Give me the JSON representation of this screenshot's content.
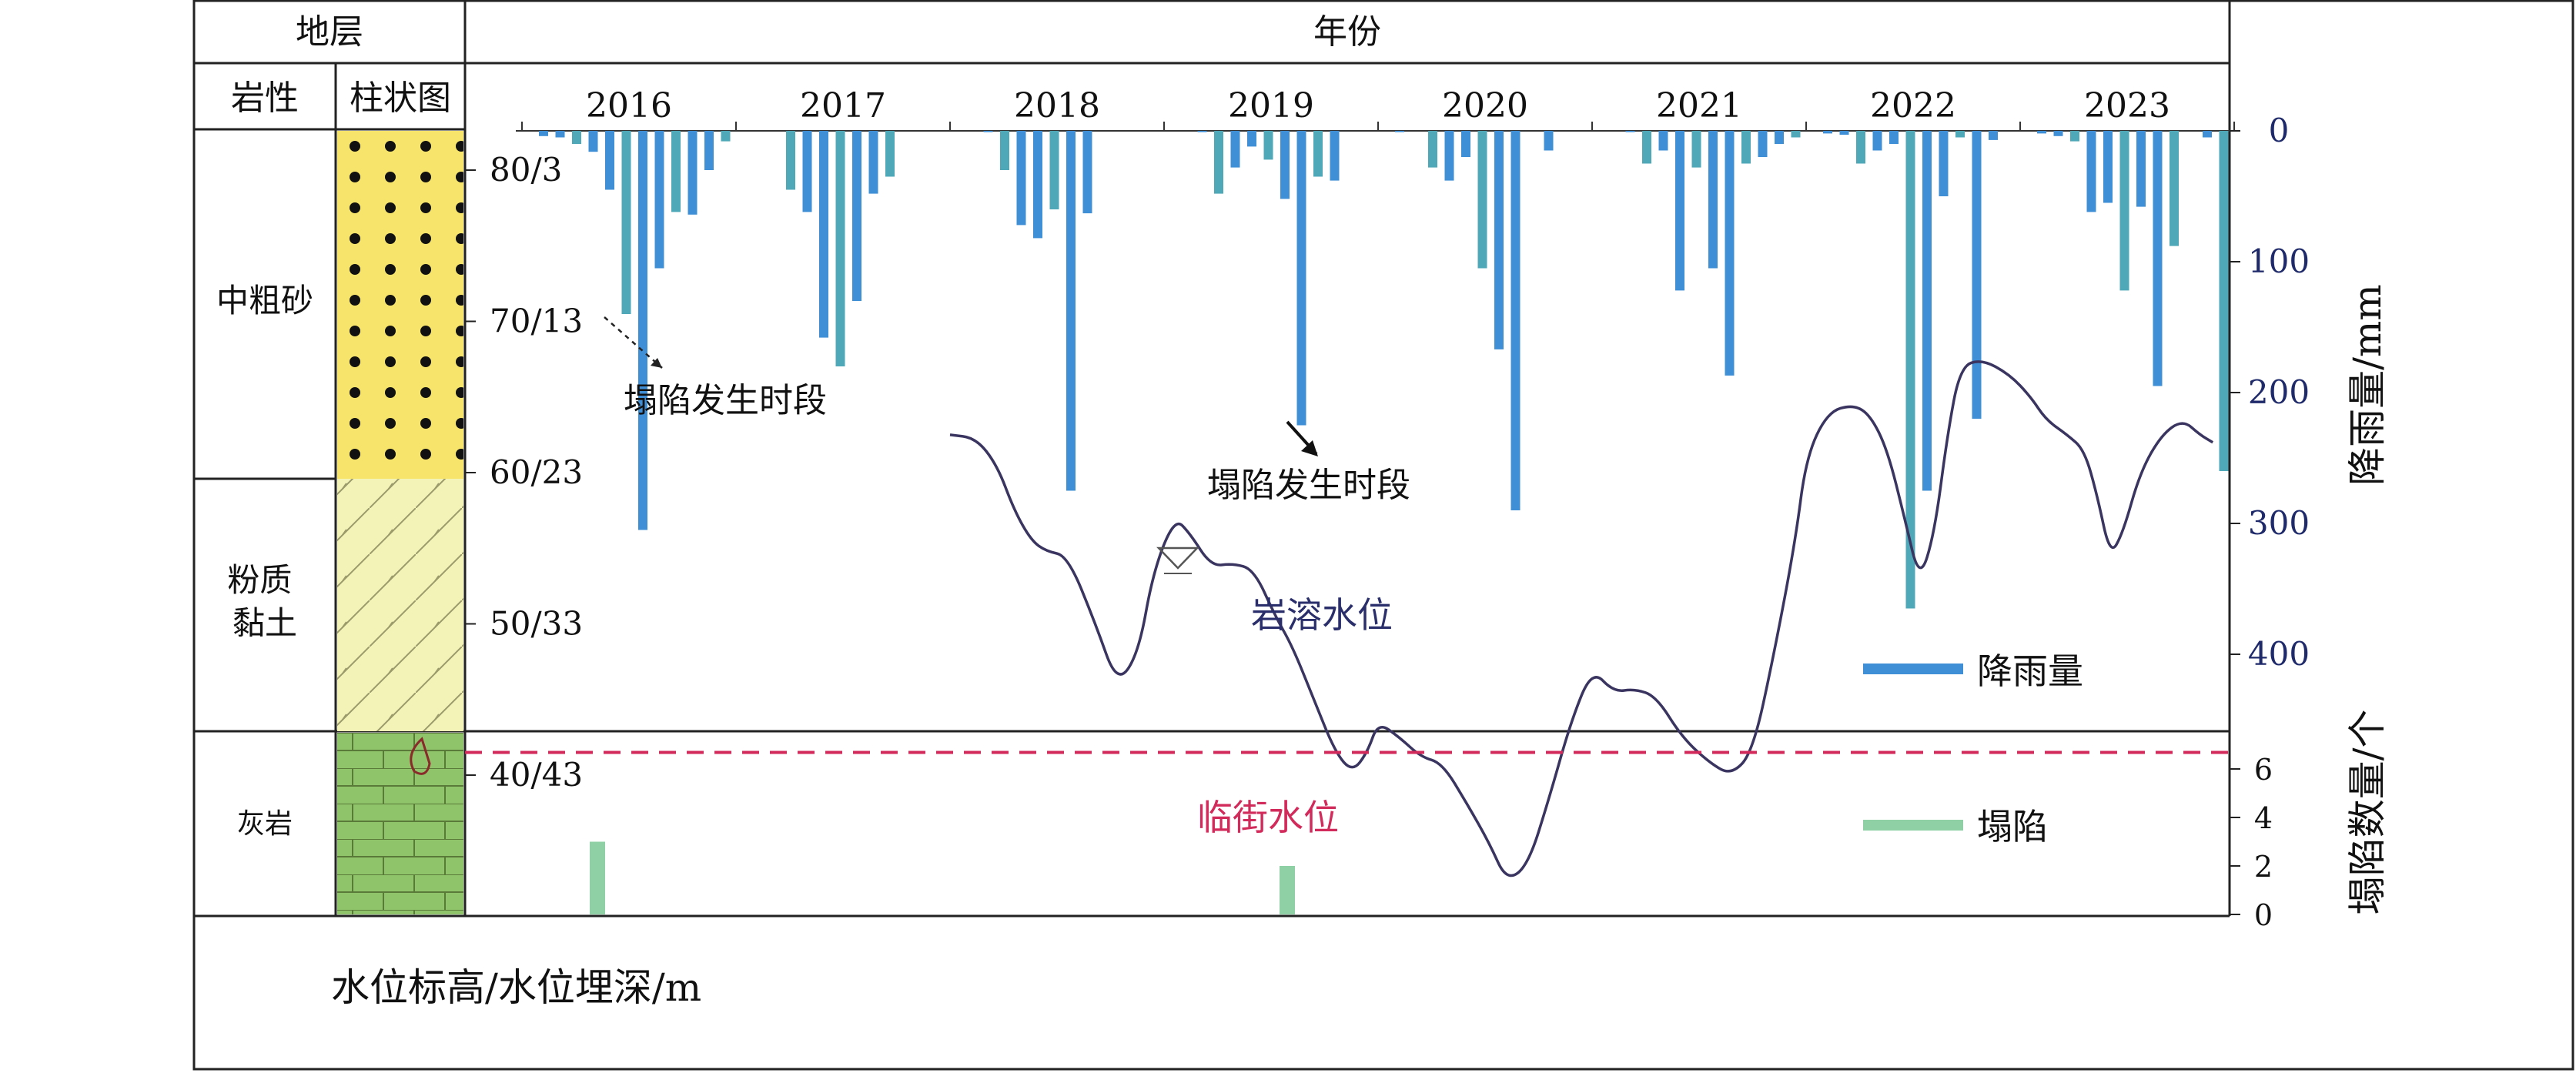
{
  "header": {
    "stratum": "地层",
    "lithology": "岩性",
    "column_chart": "柱状图",
    "year": "年份"
  },
  "lithology_layers": [
    {
      "name": "中粗砂",
      "pattern": "dots",
      "color": "#f7e46a"
    },
    {
      "name": "粉质\n黏土",
      "pattern": "hatch",
      "color": "#f3f3b8"
    },
    {
      "name": "灰岩",
      "pattern": "brick",
      "color": "#8fc46a"
    }
  ],
  "left_axis": {
    "title": "水位标高/水位埋深/m",
    "ticks": [
      "80/3",
      "70/13",
      "60/23",
      "50/33",
      "40/43"
    ]
  },
  "annotations": {
    "collapse_period_1": "塌陷发生时段",
    "collapse_period_2": "塌陷发生时段",
    "karst_water_level": "岩溶水位",
    "critical_water_level": "临街水位"
  },
  "legend": {
    "rainfall": "降雨量",
    "collapse": "塌陷"
  },
  "colors": {
    "rainfall_bar": "#3f8fd6",
    "rainfall_bar_alt": "#4fa8b8",
    "collapse_bar": "#8fd1a4",
    "water_line": "#3a3560",
    "critical_line": "#d22a5a",
    "axis_text": "#1f2a6b"
  },
  "chart_data": [
    {
      "type": "bar",
      "name": "rainfall",
      "title": "",
      "x": [
        "2016",
        "2017",
        "2018",
        "2019",
        "2020",
        "2021",
        "2022",
        "2023"
      ],
      "xlabel": "年份",
      "ylabel": "降雨量/mm",
      "y_ticks": [
        0,
        100,
        200,
        300,
        400
      ],
      "ylim": [
        0,
        400
      ],
      "inverted": true,
      "monthly_values": {
        "2016": [
          4,
          5,
          10,
          16,
          45,
          140,
          305,
          105,
          62,
          64,
          30,
          8
        ],
        "2017": [
          0,
          0,
          45,
          62,
          158,
          180,
          130,
          48,
          35,
          0,
          0,
          0
        ],
        "2018": [
          0,
          1,
          30,
          72,
          82,
          60,
          275,
          63,
          0,
          0,
          0,
          0
        ],
        "2019": [
          0,
          1,
          48,
          28,
          12,
          22,
          52,
          225,
          35,
          38,
          0,
          0
        ],
        "2020": [
          1,
          0,
          28,
          38,
          20,
          105,
          167,
          290,
          0,
          15,
          0,
          0
        ],
        "2021": [
          0,
          1,
          25,
          15,
          122,
          28,
          105,
          187,
          25,
          20,
          10,
          5
        ],
        "2022": [
          2,
          3,
          25,
          15,
          10,
          365,
          275,
          50,
          5,
          220,
          7,
          0
        ],
        "2023": [
          2,
          4,
          8,
          62,
          55,
          122,
          58,
          195,
          88,
          0,
          5,
          260
        ]
      }
    },
    {
      "type": "bar",
      "name": "collapse",
      "ylabel": "塌陷数量/个",
      "y_ticks": [
        0,
        2,
        4,
        6
      ],
      "ylim": [
        0,
        7
      ],
      "values": [
        {
          "year": "2016",
          "count": 3
        },
        {
          "year": "2019",
          "count": 2
        }
      ]
    },
    {
      "type": "line",
      "name": "岩溶水位",
      "ylabel": "水位标高/水位埋深/m",
      "y_ticks": [
        "80/3",
        "70/13",
        "60/23",
        "50/33",
        "40/43"
      ],
      "x_range": [
        2018.0,
        2023.95
      ],
      "points": [
        [
          2018.0,
          62.5
        ],
        [
          2018.12,
          62.3
        ],
        [
          2018.22,
          60.5
        ],
        [
          2018.3,
          57.5
        ],
        [
          2018.38,
          55.5
        ],
        [
          2018.45,
          54.8
        ],
        [
          2018.55,
          54.5
        ],
        [
          2018.68,
          50.0
        ],
        [
          2018.78,
          46.0
        ],
        [
          2018.88,
          48.0
        ],
        [
          2018.95,
          53.5
        ],
        [
          2019.05,
          57.0
        ],
        [
          2019.12,
          56.0
        ],
        [
          2019.22,
          53.8
        ],
        [
          2019.32,
          54.0
        ],
        [
          2019.42,
          53.6
        ],
        [
          2019.52,
          50.5
        ],
        [
          2019.6,
          48.5
        ],
        [
          2019.7,
          45.0
        ],
        [
          2019.8,
          41.5
        ],
        [
          2019.88,
          40.2
        ],
        [
          2019.95,
          41.5
        ],
        [
          2020.0,
          43.5
        ],
        [
          2020.1,
          42.5
        ],
        [
          2020.2,
          41.2
        ],
        [
          2020.3,
          40.8
        ],
        [
          2020.42,
          38.0
        ],
        [
          2020.52,
          35.5
        ],
        [
          2020.6,
          33.0
        ],
        [
          2020.7,
          34.0
        ],
        [
          2020.8,
          38.5
        ],
        [
          2020.9,
          43.5
        ],
        [
          2021.0,
          47.0
        ],
        [
          2021.1,
          45.5
        ],
        [
          2021.2,
          45.7
        ],
        [
          2021.3,
          45.2
        ],
        [
          2021.42,
          42.5
        ],
        [
          2021.55,
          40.8
        ],
        [
          2021.65,
          40.0
        ],
        [
          2021.75,
          41.5
        ],
        [
          2021.85,
          48.0
        ],
        [
          2021.95,
          55.5
        ],
        [
          2022.0,
          61.0
        ],
        [
          2022.1,
          64.0
        ],
        [
          2022.22,
          64.5
        ],
        [
          2022.3,
          63.8
        ],
        [
          2022.38,
          61.5
        ],
        [
          2022.46,
          57.0
        ],
        [
          2022.53,
          52.8
        ],
        [
          2022.6,
          56.0
        ],
        [
          2022.66,
          62.5
        ],
        [
          2022.72,
          67.0
        ],
        [
          2022.82,
          67.5
        ],
        [
          2022.95,
          66.5
        ],
        [
          2023.05,
          65.0
        ],
        [
          2023.12,
          63.5
        ],
        [
          2023.22,
          62.5
        ],
        [
          2023.3,
          61.5
        ],
        [
          2023.36,
          58.5
        ],
        [
          2023.42,
          54.5
        ],
        [
          2023.48,
          56.0
        ],
        [
          2023.56,
          60.0
        ],
        [
          2023.66,
          62.5
        ],
        [
          2023.76,
          63.5
        ],
        [
          2023.84,
          62.5
        ],
        [
          2023.9,
          62.0
        ]
      ]
    },
    {
      "type": "line",
      "name": "临街水位",
      "y": 41.5,
      "style": "dashed"
    }
  ]
}
